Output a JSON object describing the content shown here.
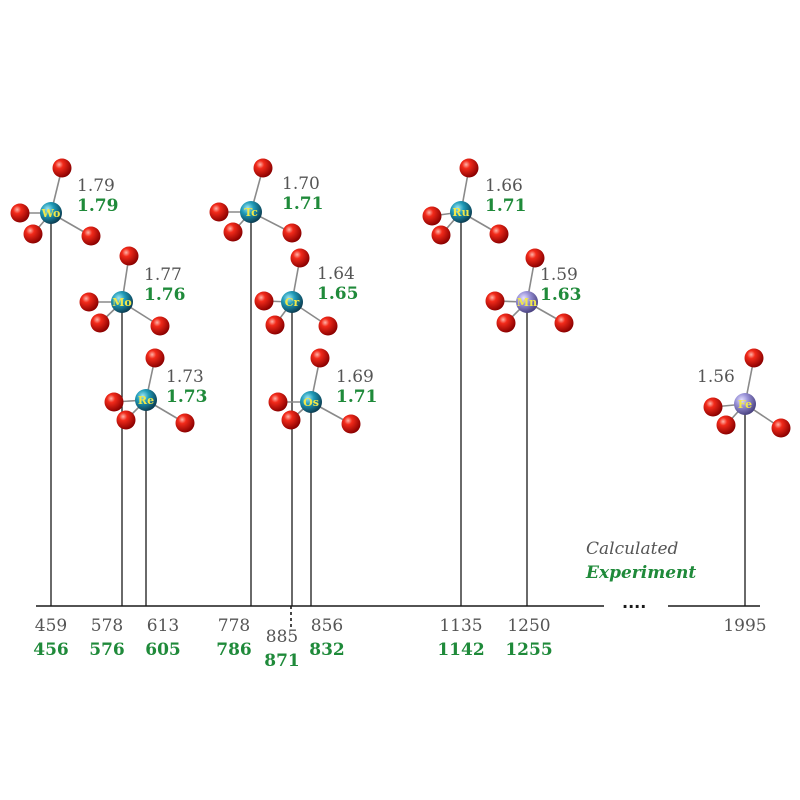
{
  "legend": {
    "calculated": "Calculated",
    "experiment": "Experiment"
  },
  "axis_break": "....",
  "colors": {
    "calculated_text": "#555555",
    "experiment_text": "#1f8a3a",
    "oxygen": "#e01414",
    "metal_teal": "#1f9bb8",
    "metal_lavender": "#9a93d8",
    "atom_label": "#f1e84a"
  },
  "molecules": [
    {
      "symbol": "Wo",
      "calc_freq": "459",
      "exp_freq": "456",
      "calc_bond": "1.79",
      "exp_bond": "1.79",
      "color": "teal"
    },
    {
      "symbol": "Mo",
      "calc_freq": "578",
      "exp_freq": "576",
      "calc_bond": "1.77",
      "exp_bond": "1.76",
      "color": "teal"
    },
    {
      "symbol": "Re",
      "calc_freq": "613",
      "exp_freq": "605",
      "calc_bond": "1.73",
      "exp_bond": "1.73",
      "color": "teal"
    },
    {
      "symbol": "Tc",
      "calc_freq": "778",
      "exp_freq": "786",
      "calc_bond": "1.70",
      "exp_bond": "1.71",
      "color": "teal"
    },
    {
      "symbol": "Cr",
      "calc_freq": "885",
      "exp_freq": "871",
      "calc_bond": "1.64",
      "exp_bond": "1.65",
      "color": "teal"
    },
    {
      "symbol": "Os",
      "calc_freq": "856",
      "exp_freq": "832",
      "calc_bond": "1.69",
      "exp_bond": "1.71",
      "color": "teal"
    },
    {
      "symbol": "Ru",
      "calc_freq": "1135",
      "exp_freq": "1142",
      "calc_bond": "1.66",
      "exp_bond": "1.71",
      "color": "teal"
    },
    {
      "symbol": "Mn",
      "calc_freq": "1250",
      "exp_freq": "1255",
      "calc_bond": "1.59",
      "exp_bond": "1.63",
      "color": "lavender"
    },
    {
      "symbol": "Fe",
      "calc_freq": "1995",
      "exp_freq": "",
      "calc_bond": "1.56",
      "exp_bond": "",
      "color": "lavender"
    }
  ]
}
